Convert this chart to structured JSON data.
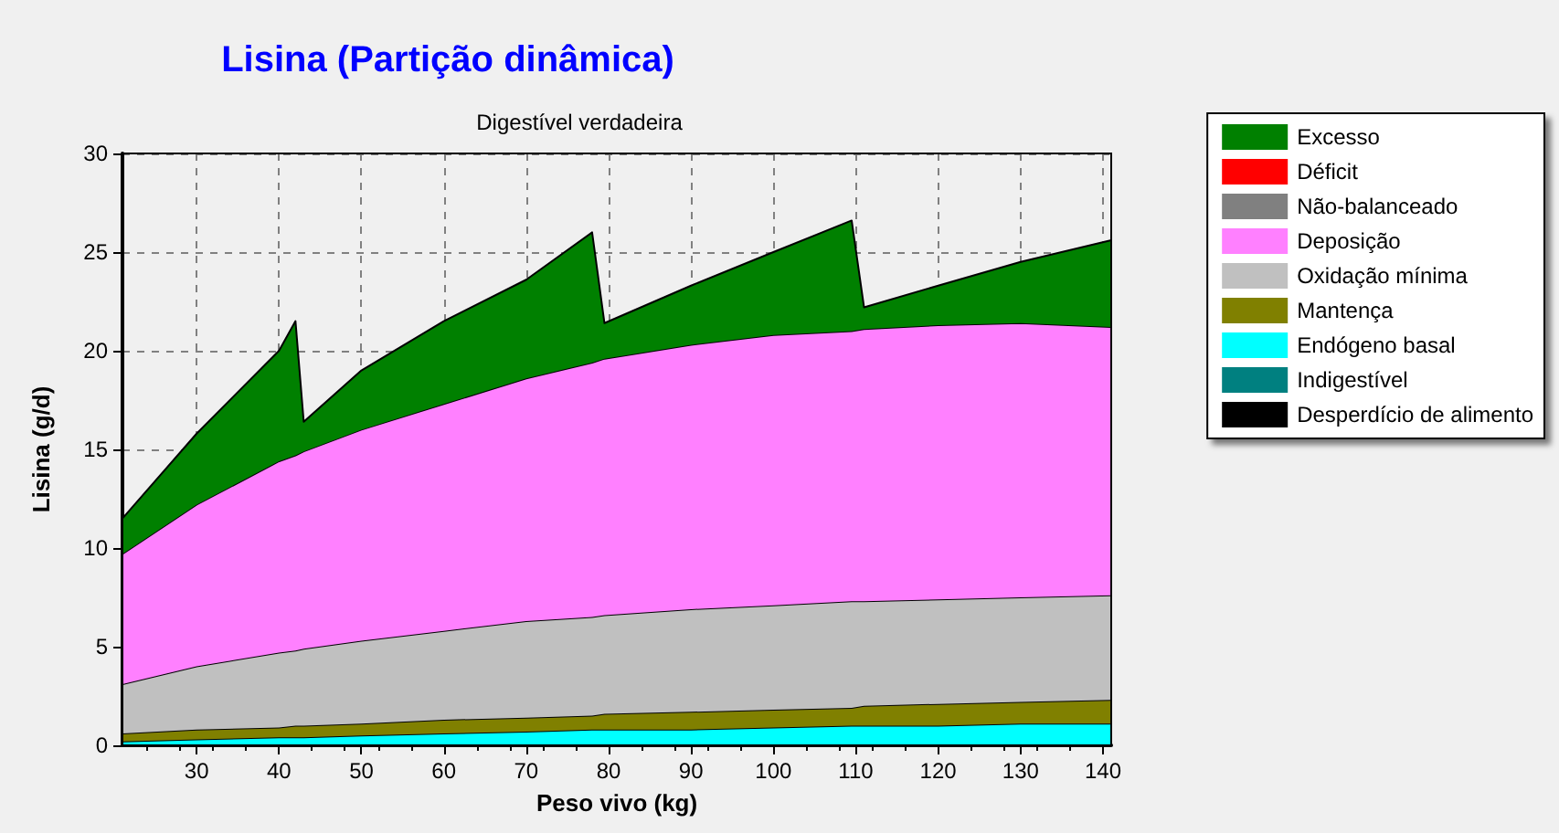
{
  "chart_data": {
    "type": "area",
    "title": "Lisina (Partição dinâmica)",
    "subtitle": "Digestível verdadeira",
    "xlabel": "Peso vivo (kg)",
    "ylabel": "Lisina (g/d)",
    "x": [
      21,
      30,
      40,
      42,
      43,
      50,
      60,
      70,
      78,
      79.5,
      90,
      100,
      109.5,
      111,
      120,
      130,
      141
    ],
    "stacked": true,
    "series": [
      {
        "name": "Desperdício de alimento",
        "color": "#000000",
        "values": [
          null,
          null,
          null,
          null,
          null,
          null,
          null,
          null,
          null,
          null,
          null,
          null,
          null,
          null,
          null,
          null,
          null
        ]
      },
      {
        "name": "Indigestível",
        "color": "#008080",
        "values": [
          null,
          null,
          null,
          null,
          null,
          null,
          null,
          null,
          null,
          null,
          null,
          null,
          null,
          null,
          null,
          null,
          null
        ]
      },
      {
        "name": "Endógeno basal",
        "color": "#00ffff",
        "values": [
          0.2,
          0.3,
          0.4,
          0.4,
          0.4,
          0.5,
          0.6,
          0.7,
          0.8,
          0.8,
          0.8,
          0.9,
          1.0,
          1.0,
          1.0,
          1.1,
          1.1
        ]
      },
      {
        "name": "Mantença",
        "color": "#808000",
        "values": [
          0.4,
          0.5,
          0.5,
          0.6,
          0.6,
          0.6,
          0.7,
          0.7,
          0.7,
          0.8,
          0.9,
          0.9,
          0.9,
          1.0,
          1.1,
          1.1,
          1.2
        ]
      },
      {
        "name": "Oxidação mínima",
        "color": "#c0c0c0",
        "values": [
          2.5,
          3.2,
          3.8,
          3.8,
          3.9,
          4.2,
          4.5,
          4.9,
          5.0,
          5.0,
          5.2,
          5.3,
          5.4,
          5.3,
          5.3,
          5.3,
          5.3
        ]
      },
      {
        "name": "Deposição",
        "color": "#ff80ff",
        "values": [
          6.6,
          8.2,
          9.7,
          9.9,
          10.0,
          10.7,
          11.5,
          12.3,
          12.9,
          13.0,
          13.4,
          13.7,
          13.7,
          13.8,
          13.9,
          13.9,
          13.6
        ]
      },
      {
        "name": "Não-balanceado",
        "color": "#808080",
        "values": [
          null,
          null,
          null,
          null,
          null,
          null,
          null,
          null,
          null,
          null,
          null,
          null,
          null,
          null,
          null,
          null,
          null
        ]
      },
      {
        "name": "Déficit",
        "color": "#ff0000",
        "values": [
          null,
          null,
          null,
          null,
          null,
          null,
          null,
          null,
          null,
          null,
          null,
          null,
          null,
          null,
          null,
          null,
          null
        ]
      },
      {
        "name": "Excesso",
        "color": "#008000",
        "values": [
          1.8,
          3.6,
          5.6,
          6.8,
          1.5,
          3.0,
          4.2,
          5.0,
          6.6,
          1.8,
          3.0,
          4.2,
          5.6,
          1.1,
          2.0,
          3.1,
          4.4
        ]
      }
    ],
    "xlim": [
      21,
      141
    ],
    "xticks": [
      30,
      40,
      50,
      60,
      70,
      80,
      90,
      100,
      110,
      120,
      130,
      140
    ],
    "ylim": [
      0,
      30
    ],
    "yticks": [
      0,
      5,
      10,
      15,
      20,
      25,
      30
    ],
    "grid": true,
    "legend": "right",
    "marker": "none"
  }
}
